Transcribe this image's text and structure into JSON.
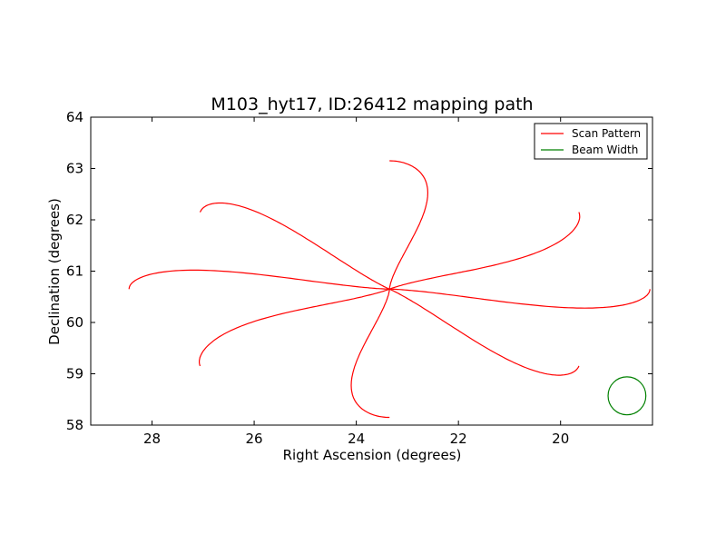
{
  "chart_data": {
    "type": "line",
    "title": "M103_hyt17, ID:26412 mapping path",
    "xlabel": "Right Ascension (degrees)",
    "ylabel": "Declination (degrees)",
    "xlim": [
      29.2,
      18.2
    ],
    "ylim": [
      58,
      64
    ],
    "x_reversed": true,
    "xticks": [
      28,
      26,
      24,
      22,
      20
    ],
    "yticks": [
      58,
      59,
      60,
      61,
      62,
      63,
      64
    ],
    "grid": false,
    "legend_placement": "top-right",
    "series": [
      {
        "name": "Scan Pattern",
        "color": "#ff0000",
        "pattern": "rose",
        "center": [
          23.35,
          60.65
        ],
        "petals": [
          {
            "angle_deg": 0,
            "length_deg": 5.1,
            "half_width_deg": 0.37
          },
          {
            "angle_deg": 22,
            "length_deg": 4.0,
            "half_width_deg": 0.42
          },
          {
            "angle_deg": 90,
            "length_deg": 2.5,
            "half_width_deg": 0.75
          },
          {
            "angle_deg": 158,
            "length_deg": 4.0,
            "half_width_deg": 0.42
          },
          {
            "angle_deg": 180,
            "length_deg": 5.1,
            "half_width_deg": 0.37
          },
          {
            "angle_deg": 202,
            "length_deg": 4.0,
            "half_width_deg": 0.42
          },
          {
            "angle_deg": 270,
            "length_deg": 2.5,
            "half_width_deg": 0.75
          },
          {
            "angle_deg": 338,
            "length_deg": 4.0,
            "half_width_deg": 0.42
          }
        ]
      },
      {
        "name": "Beam Width",
        "color": "#008000",
        "shape": "circle",
        "center": [
          18.7,
          58.57
        ],
        "radius": 0.37
      }
    ]
  }
}
